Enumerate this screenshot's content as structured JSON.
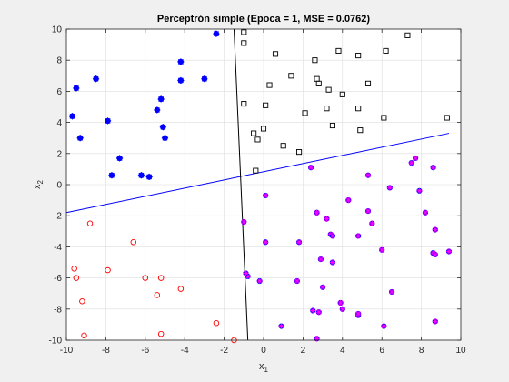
{
  "chart_data": {
    "type": "scatter",
    "title": "Perceptrón simple (Epoca = 1, MSE = 0.0762)",
    "xlabel_base": "x",
    "xlabel_sub": "1",
    "ylabel_base": "x",
    "ylabel_sub": "2",
    "xlim": [
      -10,
      10
    ],
    "ylim": [
      -10,
      10
    ],
    "xticks": [
      -10,
      -8,
      -6,
      -4,
      -2,
      0,
      2,
      4,
      6,
      8,
      10
    ],
    "yticks": [
      -10,
      -8,
      -6,
      -4,
      -2,
      0,
      2,
      4,
      6,
      8,
      10
    ],
    "grid": true,
    "colors": {
      "blue_marker": "#0000ff",
      "black_marker": "#000000",
      "red_marker": "#ff0000",
      "magenta_marker": "#ff00ff",
      "blue_line": "#0000ff",
      "black_line": "#000000",
      "grid": "#dedede",
      "axes_bg": "#ffffff",
      "figure_bg": "#f0f0f0"
    },
    "series": [
      {
        "marker": "star-filled",
        "color": "blue_marker",
        "points": [
          [
            -9.7,
            4.4
          ],
          [
            -9.5,
            6.2
          ],
          [
            -9.3,
            3.0
          ],
          [
            -8.5,
            6.8
          ],
          [
            -7.9,
            4.1
          ],
          [
            -7.7,
            0.6
          ],
          [
            -7.3,
            1.7
          ],
          [
            -6.2,
            0.6
          ],
          [
            -5.8,
            0.5
          ],
          [
            -5.4,
            4.8
          ],
          [
            -5.2,
            5.5
          ],
          [
            -5.1,
            3.7
          ],
          [
            -5.0,
            3.0
          ],
          [
            -4.2,
            6.7
          ],
          [
            -4.2,
            7.9
          ],
          [
            -3.0,
            6.8
          ],
          [
            -2.4,
            9.7
          ]
        ]
      },
      {
        "marker": "square",
        "color": "black_marker",
        "points": [
          [
            -1.0,
            9.8
          ],
          [
            -1.0,
            9.1
          ],
          [
            -1.0,
            5.2
          ],
          [
            0.0,
            3.6
          ],
          [
            0.1,
            5.1
          ],
          [
            0.3,
            6.4
          ],
          [
            0.6,
            8.4
          ],
          [
            1.0,
            2.5
          ],
          [
            1.4,
            7.0
          ],
          [
            1.8,
            2.1
          ],
          [
            2.1,
            4.6
          ],
          [
            2.6,
            8.0
          ],
          [
            2.7,
            6.8
          ],
          [
            2.8,
            6.5
          ],
          [
            3.2,
            4.9
          ],
          [
            3.3,
            6.1
          ],
          [
            3.5,
            3.8
          ],
          [
            3.8,
            8.6
          ],
          [
            4.0,
            5.8
          ],
          [
            4.8,
            8.3
          ],
          [
            4.8,
            4.9
          ],
          [
            4.9,
            3.5
          ],
          [
            5.3,
            6.5
          ],
          [
            6.1,
            4.3
          ],
          [
            6.2,
            8.6
          ],
          [
            7.3,
            9.6
          ],
          [
            9.3,
            4.3
          ],
          [
            -0.5,
            3.3
          ],
          [
            -0.3,
            2.9
          ],
          [
            -0.4,
            0.9
          ]
        ]
      },
      {
        "marker": "circle",
        "color": "red_marker",
        "points": [
          [
            -9.6,
            -5.4
          ],
          [
            -9.5,
            -6.0
          ],
          [
            -9.2,
            -7.5
          ],
          [
            -9.1,
            -9.7
          ],
          [
            -8.8,
            -2.5
          ],
          [
            -7.9,
            -5.5
          ],
          [
            -6.6,
            -3.7
          ],
          [
            -6.0,
            -6.0
          ],
          [
            -5.4,
            -7.1
          ],
          [
            -5.2,
            -6.0
          ],
          [
            -5.2,
            -9.6
          ],
          [
            -4.2,
            -6.7
          ],
          [
            -2.4,
            -8.9
          ],
          [
            -1.5,
            -10.0
          ]
        ]
      },
      {
        "marker": "star-magenta-on-blue",
        "color": "magenta_marker",
        "points": [
          [
            -1.0,
            -2.4
          ],
          [
            -0.8,
            -5.9
          ],
          [
            -0.9,
            -5.7
          ],
          [
            -0.2,
            -6.2
          ],
          [
            0.1,
            -0.7
          ],
          [
            0.1,
            -3.7
          ],
          [
            0.9,
            -9.1
          ],
          [
            1.7,
            -6.2
          ],
          [
            1.8,
            -3.7
          ],
          [
            2.4,
            1.1
          ],
          [
            2.5,
            -8.1
          ],
          [
            2.7,
            -9.9
          ],
          [
            2.7,
            -1.8
          ],
          [
            2.8,
            -8.2
          ],
          [
            2.9,
            -4.8
          ],
          [
            3.0,
            -6.6
          ],
          [
            3.2,
            -2.2
          ],
          [
            3.4,
            -3.2
          ],
          [
            3.5,
            -3.3
          ],
          [
            3.5,
            -5.0
          ],
          [
            3.9,
            -7.6
          ],
          [
            4.0,
            -8.0
          ],
          [
            4.3,
            -1.0
          ],
          [
            4.8,
            -8.4
          ],
          [
            4.8,
            -3.3
          ],
          [
            5.3,
            0.6
          ],
          [
            5.3,
            -1.7
          ],
          [
            5.5,
            -2.5
          ],
          [
            6.0,
            -4.2
          ],
          [
            6.1,
            -9.1
          ],
          [
            6.4,
            -0.2
          ],
          [
            6.5,
            -6.9
          ],
          [
            7.5,
            1.4
          ],
          [
            7.7,
            1.7
          ],
          [
            7.9,
            -0.4
          ],
          [
            8.2,
            -1.8
          ],
          [
            8.6,
            1.1
          ],
          [
            8.6,
            -4.4
          ],
          [
            8.6,
            -4.4
          ],
          [
            8.7,
            -4.5
          ],
          [
            8.7,
            -2.9
          ],
          [
            8.7,
            -8.8
          ],
          [
            9.4,
            -4.3
          ],
          [
            4.8,
            -8.3
          ]
        ]
      }
    ],
    "lines": [
      {
        "name": "",
        "color": "blue_line",
        "points": [
          [
            -10,
            -1.8
          ],
          [
            9.4,
            3.3
          ]
        ]
      },
      {
        "name": "",
        "color": "black_line",
        "points": [
          [
            -1.5,
            10
          ],
          [
            -0.8,
            -10
          ]
        ]
      }
    ]
  }
}
